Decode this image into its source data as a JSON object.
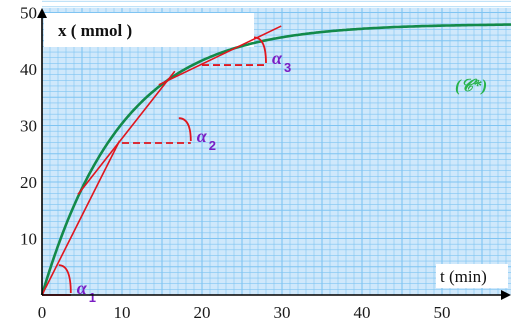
{
  "chart_data": {
    "type": "line",
    "y_axis_title": "x ( mmol )",
    "x_axis_title": "t (min)",
    "x_ticks": [
      "0",
      "10",
      "20",
      "30",
      "40",
      "50"
    ],
    "y_ticks": [
      "10",
      "20",
      "30",
      "40",
      "50"
    ],
    "xlim": [
      0,
      59
    ],
    "ylim": [
      0,
      54
    ],
    "grid": true,
    "colors": {
      "background": "#cfe8fb",
      "grid": "#7fc4f2",
      "curve": "#138a4a",
      "tangent": "#e0161e",
      "angle_label": "#7a1cc4",
      "curve_label": "#27b34a"
    },
    "series": [
      {
        "name": "(𝒞*)",
        "function": "x = 48 * (1 - exp(-t / 10))",
        "x_range": [
          0,
          59
        ]
      }
    ],
    "tangents": [
      {
        "x": [
          0,
          9.7
        ],
        "y": [
          0,
          27.3
        ]
      },
      {
        "x": [
          4.5,
          16.6
        ],
        "y": [
          17.8,
          39.6
        ]
      },
      {
        "x": [
          14.6,
          29.9
        ],
        "y": [
          37.2,
          47.6
        ]
      }
    ],
    "angle_markers": [
      {
        "label": "α",
        "subscript": "1",
        "vertex": [
          0,
          0
        ],
        "x_end": 3.6,
        "y_top": 5.3
      },
      {
        "label": "α",
        "subscript": "2",
        "vertex": [
          10,
          26.9
        ],
        "x_end": 18.6,
        "y_top": 31.3
      },
      {
        "label": "α",
        "subscript": "3",
        "vertex": [
          20,
          40.7
        ],
        "x_end": 28.0,
        "y_top": 45.6
      }
    ]
  }
}
